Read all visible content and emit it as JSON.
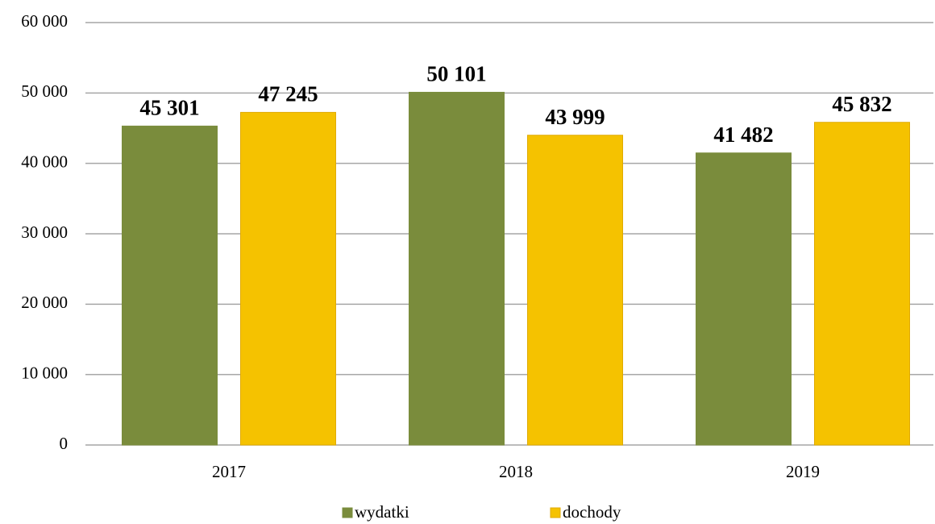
{
  "chart_data": {
    "type": "bar",
    "categories": [
      "2017",
      "2018",
      "2019"
    ],
    "series": [
      {
        "name": "wydatki",
        "color": "#7a8c3c",
        "values": [
          45301,
          50101,
          41482
        ],
        "value_labels": [
          "45 301",
          "50 101",
          "41 482"
        ]
      },
      {
        "name": "dochody",
        "color": "#f5c200",
        "values": [
          47245,
          43999,
          45832
        ],
        "value_labels": [
          "47 245",
          "43 999",
          "45 832"
        ]
      }
    ],
    "ylim": [
      0,
      60000
    ],
    "yticks": [
      0,
      {
        "value": 10000,
        "label": "10 000"
      },
      {
        "value": 20000,
        "label": "20 000"
      },
      {
        "value": 30000,
        "label": "30 000"
      },
      {
        "value": 40000,
        "label": "40 000"
      },
      {
        "value": 50000,
        "label": "50 000"
      },
      {
        "value": 60000,
        "label": "60 000"
      }
    ],
    "grid": true,
    "legend": "bottom"
  }
}
